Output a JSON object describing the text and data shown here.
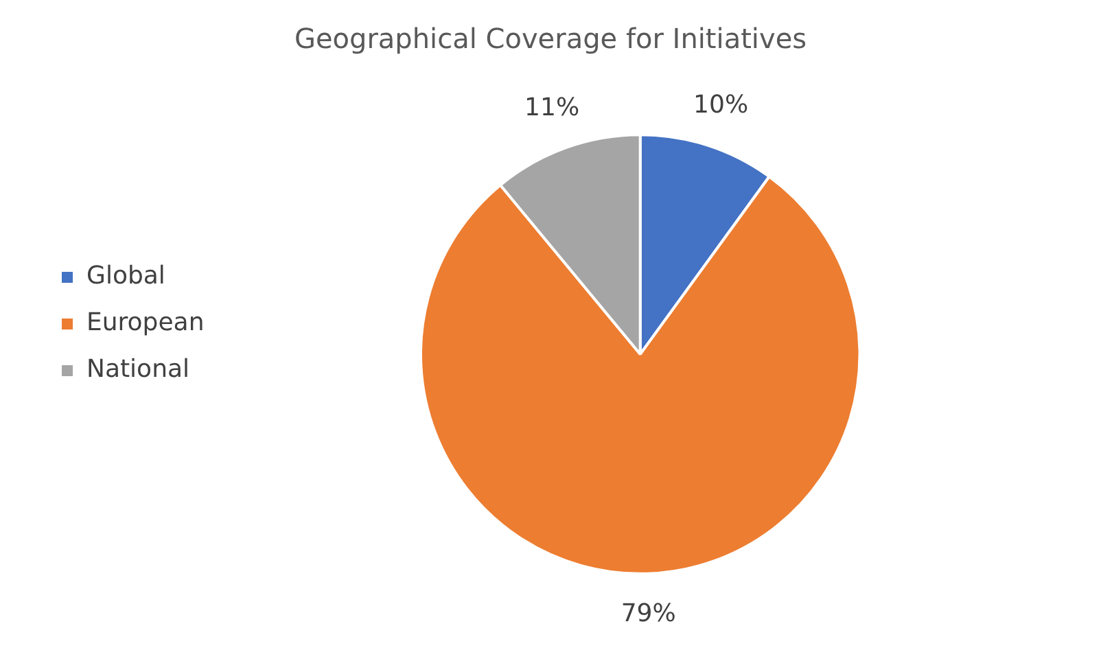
{
  "chart_data": {
    "type": "pie",
    "title": "Geographical Coverage for Initiatives",
    "categories": [
      "Global",
      "European",
      "National"
    ],
    "values": [
      10,
      79,
      11
    ],
    "colors": [
      "#4472c4",
      "#ed7d31",
      "#a5a5a5"
    ],
    "value_labels": [
      "10%",
      "79%",
      "11%"
    ],
    "legend": "left"
  }
}
